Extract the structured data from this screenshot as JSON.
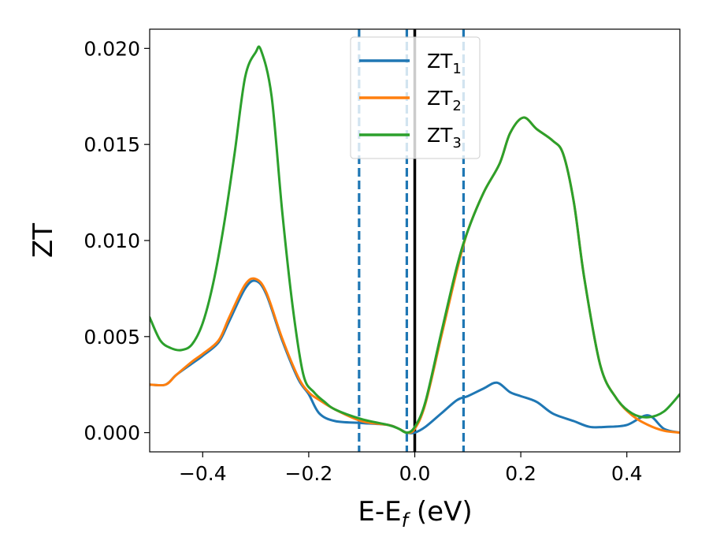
{
  "chart_data": {
    "type": "line",
    "xlabel_main": "E-E",
    "xlabel_sub": "f",
    "xlabel_unit": " (eV)",
    "ylabel": "ZT",
    "xlim": [
      -0.5,
      0.5
    ],
    "ylim": [
      -0.001,
      0.021
    ],
    "x_ticks": [
      -0.4,
      -0.2,
      0.0,
      0.2,
      0.4
    ],
    "x_tick_labels": [
      "−0.4",
      "−0.2",
      "0.0",
      "0.2",
      "0.4"
    ],
    "y_ticks": [
      0.0,
      0.005,
      0.01,
      0.015,
      0.02
    ],
    "y_tick_labels": [
      "0.000",
      "0.005",
      "0.010",
      "0.015",
      "0.020"
    ],
    "legend_position": "top-center",
    "grid": false,
    "vertical_lines": [
      {
        "x": -0.105,
        "style": "dashed",
        "color": "#1f77b4"
      },
      {
        "x": -0.015,
        "style": "dashed",
        "color": "#1f77b4"
      },
      {
        "x": 0.0,
        "style": "solid",
        "color": "#000000"
      },
      {
        "x": 0.092,
        "style": "dashed",
        "color": "#1f77b4"
      }
    ],
    "series": [
      {
        "name_main": "ZT",
        "name_sub": "1",
        "color": "#1f77b4",
        "x": [
          -0.5,
          -0.47,
          -0.45,
          -0.42,
          -0.4,
          -0.37,
          -0.35,
          -0.32,
          -0.3,
          -0.28,
          -0.25,
          -0.22,
          -0.2,
          -0.18,
          -0.15,
          -0.1,
          -0.05,
          -0.03,
          -0.015,
          0.0,
          0.02,
          0.05,
          0.08,
          0.1,
          0.13,
          0.155,
          0.18,
          0.2,
          0.23,
          0.26,
          0.3,
          0.33,
          0.36,
          0.4,
          0.44,
          0.47,
          0.5
        ],
        "y": [
          0.0025,
          0.0025,
          0.003,
          0.0036,
          0.004,
          0.0047,
          0.0058,
          0.0075,
          0.0079,
          0.0072,
          0.0048,
          0.0028,
          0.002,
          0.001,
          0.0006,
          0.0005,
          0.0004,
          0.0002,
          0.0,
          0.0,
          0.0003,
          0.001,
          0.0017,
          0.0019,
          0.0023,
          0.0026,
          0.0021,
          0.0019,
          0.0016,
          0.001,
          0.0006,
          0.0003,
          0.0003,
          0.0004,
          0.0009,
          0.0002,
          0.0
        ]
      },
      {
        "name_main": "ZT",
        "name_sub": "2",
        "color": "#ff7f0e",
        "x": [
          -0.5,
          -0.47,
          -0.45,
          -0.42,
          -0.4,
          -0.37,
          -0.35,
          -0.32,
          -0.3,
          -0.28,
          -0.25,
          -0.22,
          -0.2,
          -0.18,
          -0.15,
          -0.1,
          -0.05,
          -0.03,
          -0.015,
          0.0,
          0.02,
          0.05,
          0.08,
          0.1,
          0.13,
          0.16,
          0.18,
          0.205,
          0.23,
          0.26,
          0.28,
          0.3,
          0.32,
          0.35,
          0.38,
          0.41,
          0.44,
          0.47,
          0.5
        ],
        "y": [
          0.0025,
          0.0025,
          0.003,
          0.0037,
          0.0041,
          0.0048,
          0.006,
          0.0077,
          0.008,
          0.0073,
          0.0049,
          0.0029,
          0.0021,
          0.0017,
          0.0012,
          0.0006,
          0.0004,
          0.0002,
          0.0,
          0.0002,
          0.0015,
          0.005,
          0.0085,
          0.0105,
          0.0125,
          0.014,
          0.0156,
          0.0164,
          0.0158,
          0.0152,
          0.0145,
          0.012,
          0.008,
          0.0035,
          0.0018,
          0.0009,
          0.0004,
          0.0001,
          0.0
        ]
      },
      {
        "name_main": "ZT",
        "name_sub": "3",
        "color": "#2ca02c",
        "x": [
          -0.5,
          -0.48,
          -0.46,
          -0.44,
          -0.42,
          -0.4,
          -0.38,
          -0.36,
          -0.34,
          -0.32,
          -0.3,
          -0.29,
          -0.27,
          -0.25,
          -0.23,
          -0.21,
          -0.19,
          -0.17,
          -0.15,
          -0.1,
          -0.05,
          -0.03,
          -0.015,
          0.0,
          0.02,
          0.05,
          0.08,
          0.1,
          0.13,
          0.16,
          0.18,
          0.205,
          0.23,
          0.26,
          0.28,
          0.3,
          0.32,
          0.35,
          0.38,
          0.41,
          0.44,
          0.47,
          0.5
        ],
        "y": [
          0.006,
          0.0048,
          0.0044,
          0.0043,
          0.0046,
          0.0057,
          0.0078,
          0.0108,
          0.0145,
          0.0185,
          0.0198,
          0.0199,
          0.0175,
          0.0115,
          0.0065,
          0.003,
          0.0021,
          0.0016,
          0.0012,
          0.0007,
          0.0004,
          0.0002,
          0.0,
          0.0003,
          0.0016,
          0.0052,
          0.0087,
          0.0105,
          0.0125,
          0.014,
          0.0156,
          0.0164,
          0.0158,
          0.0152,
          0.0145,
          0.012,
          0.008,
          0.0035,
          0.0018,
          0.001,
          0.0008,
          0.0011,
          0.002
        ]
      }
    ]
  }
}
